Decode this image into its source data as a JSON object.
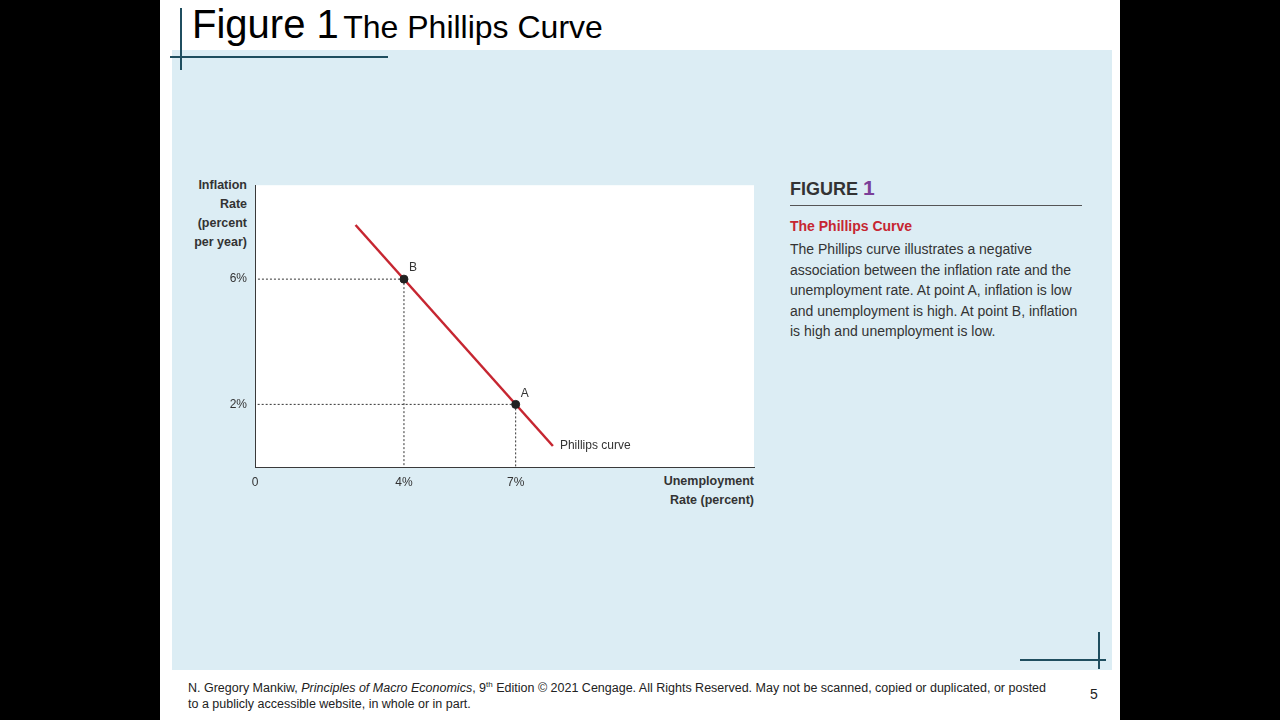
{
  "slide": {
    "figure": "Figure 1",
    "title": "The Phillips Curve",
    "caption": {
      "label": "FIGURE",
      "number": "1",
      "title": "The Phillips Curve",
      "text": "The Phillips curve illustrates a negative association between the inflation rate and the unemployment rate. At point A, inflation is low and unemployment is high. At point B, inflation is high and unemployment is low."
    },
    "footer": {
      "author": "N. Gregory Mankiw, ",
      "book": "Principles of Macro Economics",
      "edition": ", 9",
      "edition_suffix": "th",
      "rest": " Edition © 2021 Cengage. All Rights Reserved. May not be scanned, copied or duplicated, or posted to a publicly accessible website, in whole or in part."
    },
    "page": 5
  },
  "chart_data": {
    "type": "line",
    "x_label": [
      "Unemployment",
      "Rate (percent)"
    ],
    "y_label": [
      "Inflation",
      "Rate",
      "(percent",
      "per year)"
    ],
    "series": [
      {
        "name": "Phillips curve",
        "type": "line",
        "color": "#c62631",
        "line_style": "solid",
        "x": [
          2.7,
          8.0
        ],
        "values": [
          7.73,
          0.67
        ]
      }
    ],
    "points": {
      "labels": [
        "B",
        "A"
      ],
      "x": [
        4,
        7
      ],
      "values": [
        6,
        2
      ],
      "color": "#222222",
      "marker": "circle"
    },
    "xlim": [
      0,
      13.4
    ],
    "xticks": [
      0,
      {
        "value": 4,
        "label": "4%"
      },
      {
        "value": 7,
        "label": "7%"
      }
    ],
    "ylim": [
      0,
      9
    ],
    "yticks": [
      {
        "value": 2,
        "label": "2%"
      },
      {
        "value": 6,
        "label": "6%"
      }
    ],
    "grid": false
  }
}
